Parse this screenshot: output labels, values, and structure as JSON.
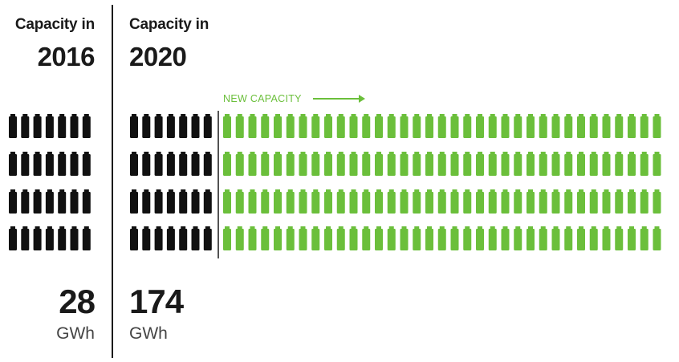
{
  "colors": {
    "existing": "#111111",
    "new": "#6bbf3b",
    "divider": "#1a1a1a"
  },
  "left": {
    "heading": "Capacity in",
    "year": "2016",
    "value": "28",
    "unit": "GWh"
  },
  "right": {
    "heading": "Capacity in",
    "year": "2020",
    "value": "174",
    "unit": "GWh"
  },
  "new_label": "NEW CAPACITY",
  "chart_data": {
    "type": "table",
    "unit": "GWh",
    "categories": [
      "2016",
      "2020"
    ],
    "values": [
      28,
      174
    ],
    "icon_value_gwh": 1,
    "icon_rows": 4,
    "existing_icons_per_row": 7,
    "new_icons_per_row": 35,
    "legend": [
      "NEW CAPACITY"
    ]
  }
}
